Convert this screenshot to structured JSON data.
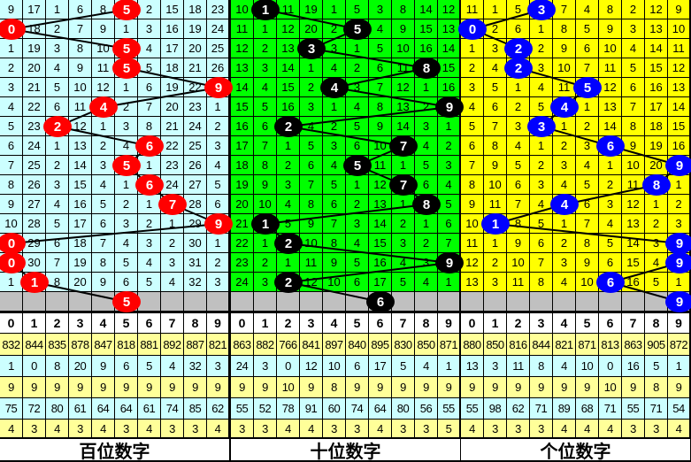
{
  "colors": {
    "hundreds_bg": "#ccffff",
    "tens_bg": "#00ff00",
    "units_bg": "#ffff00",
    "hundreds_ball": "#ff0000",
    "tens_ball": "#000000",
    "units_ball": "#0000ff",
    "pending_row": "#c0c0c0",
    "stat_yellow": "#ffff99",
    "stat_cyan": "#ccffff"
  },
  "digits": [
    "0",
    "1",
    "2",
    "3",
    "4",
    "5",
    "6",
    "7",
    "8",
    "9"
  ],
  "panels": [
    {
      "label": "百位数字",
      "hits": [
        5,
        0,
        5,
        5,
        9,
        4,
        2,
        6,
        5,
        6,
        7,
        9,
        0,
        0,
        1,
        5
      ],
      "rows": [
        [
          "9",
          "17",
          "1",
          "6",
          "8",
          "5",
          "2",
          "15",
          "18",
          "23"
        ],
        [
          "0",
          "18",
          "2",
          "7",
          "9",
          "1",
          "3",
          "16",
          "19",
          "24"
        ],
        [
          "1",
          "19",
          "3",
          "8",
          "10",
          "5",
          "4",
          "17",
          "20",
          "25"
        ],
        [
          "2",
          "20",
          "4",
          "9",
          "11",
          "5",
          "5",
          "18",
          "21",
          "26"
        ],
        [
          "3",
          "21",
          "5",
          "10",
          "12",
          "1",
          "6",
          "19",
          "22",
          "9"
        ],
        [
          "4",
          "22",
          "6",
          "11",
          "4",
          "2",
          "7",
          "20",
          "23",
          "1"
        ],
        [
          "5",
          "23",
          "2",
          "12",
          "1",
          "3",
          "8",
          "21",
          "24",
          "2"
        ],
        [
          "6",
          "24",
          "1",
          "13",
          "2",
          "4",
          "6",
          "22",
          "25",
          "3"
        ],
        [
          "7",
          "25",
          "2",
          "14",
          "3",
          "5",
          "1",
          "23",
          "26",
          "4"
        ],
        [
          "8",
          "26",
          "3",
          "15",
          "4",
          "1",
          "6",
          "24",
          "27",
          "5"
        ],
        [
          "9",
          "27",
          "4",
          "16",
          "5",
          "2",
          "1",
          "7",
          "28",
          "6"
        ],
        [
          "10",
          "28",
          "5",
          "17",
          "6",
          "3",
          "2",
          "1",
          "29",
          "9"
        ],
        [
          "0",
          "29",
          "6",
          "18",
          "7",
          "4",
          "3",
          "2",
          "30",
          "1"
        ],
        [
          "0",
          "30",
          "7",
          "19",
          "8",
          "5",
          "4",
          "3",
          "31",
          "2"
        ],
        [
          "1",
          "1",
          "8",
          "20",
          "9",
          "6",
          "5",
          "4",
          "32",
          "3"
        ],
        [
          "",
          "",
          "",
          "",
          "",
          "5",
          "",
          "",
          "",
          ""
        ]
      ],
      "stats": [
        [
          "832",
          "844",
          "835",
          "878",
          "847",
          "818",
          "881",
          "892",
          "887",
          "821"
        ],
        [
          "1",
          "0",
          "8",
          "20",
          "9",
          "6",
          "5",
          "4",
          "32",
          "3"
        ],
        [
          "9",
          "9",
          "9",
          "9",
          "9",
          "9",
          "9",
          "9",
          "9",
          "9"
        ],
        [
          "75",
          "72",
          "80",
          "61",
          "64",
          "64",
          "61",
          "74",
          "85",
          "62"
        ],
        [
          "4",
          "3",
          "4",
          "3",
          "4",
          "3",
          "4",
          "3",
          "3",
          "4"
        ]
      ]
    },
    {
      "label": "十位数字",
      "hits": [
        1,
        5,
        3,
        8,
        4,
        9,
        2,
        7,
        5,
        7,
        8,
        1,
        2,
        9,
        2,
        6
      ],
      "rows": [
        [
          "10",
          "1",
          "11",
          "19",
          "1",
          "5",
          "3",
          "8",
          "14",
          "12"
        ],
        [
          "11",
          "1",
          "12",
          "20",
          "2",
          "5",
          "4",
          "9",
          "15",
          "13"
        ],
        [
          "12",
          "2",
          "13",
          "3",
          "3",
          "1",
          "5",
          "10",
          "16",
          "14"
        ],
        [
          "13",
          "3",
          "14",
          "1",
          "4",
          "2",
          "6",
          "11",
          "8",
          "15"
        ],
        [
          "14",
          "4",
          "15",
          "2",
          "4",
          "3",
          "7",
          "12",
          "1",
          "16"
        ],
        [
          "15",
          "5",
          "16",
          "3",
          "1",
          "4",
          "8",
          "13",
          "2",
          "9"
        ],
        [
          "16",
          "6",
          "2",
          "4",
          "2",
          "5",
          "9",
          "14",
          "3",
          "1"
        ],
        [
          "17",
          "7",
          "1",
          "5",
          "3",
          "6",
          "10",
          "7",
          "4",
          "2"
        ],
        [
          "18",
          "8",
          "2",
          "6",
          "4",
          "5",
          "11",
          "1",
          "5",
          "3"
        ],
        [
          "19",
          "9",
          "3",
          "7",
          "5",
          "1",
          "12",
          "7",
          "6",
          "4"
        ],
        [
          "20",
          "10",
          "4",
          "8",
          "6",
          "2",
          "13",
          "1",
          "8",
          "5"
        ],
        [
          "21",
          "1",
          "5",
          "9",
          "7",
          "3",
          "14",
          "2",
          "1",
          "6"
        ],
        [
          "22",
          "1",
          "2",
          "10",
          "8",
          "4",
          "15",
          "3",
          "2",
          "7"
        ],
        [
          "23",
          "2",
          "1",
          "11",
          "9",
          "5",
          "16",
          "4",
          "3",
          "9"
        ],
        [
          "24",
          "3",
          "2",
          "12",
          "10",
          "6",
          "17",
          "5",
          "4",
          "1"
        ],
        [
          "",
          "",
          "",
          "",
          "",
          "",
          "6",
          "",
          "",
          ""
        ]
      ],
      "stats": [
        [
          "863",
          "882",
          "766",
          "841",
          "897",
          "840",
          "895",
          "830",
          "850",
          "871"
        ],
        [
          "24",
          "3",
          "0",
          "12",
          "10",
          "6",
          "17",
          "5",
          "4",
          "1"
        ],
        [
          "9",
          "9",
          "10",
          "9",
          "8",
          "9",
          "9",
          "9",
          "9",
          "9"
        ],
        [
          "55",
          "52",
          "78",
          "91",
          "60",
          "74",
          "64",
          "80",
          "56",
          "55"
        ],
        [
          "3",
          "3",
          "4",
          "4",
          "3",
          "3",
          "4",
          "3",
          "3",
          "5"
        ]
      ]
    },
    {
      "label": "个位数字",
      "hits": [
        3,
        0,
        2,
        2,
        5,
        4,
        3,
        6,
        9,
        8,
        4,
        1,
        9,
        9,
        6,
        9
      ],
      "rows": [
        [
          "11",
          "1",
          "5",
          "3",
          "7",
          "4",
          "8",
          "2",
          "12",
          "9"
        ],
        [
          "0",
          "2",
          "6",
          "1",
          "8",
          "5",
          "9",
          "3",
          "13",
          "10"
        ],
        [
          "1",
          "3",
          "2",
          "2",
          "9",
          "6",
          "10",
          "4",
          "14",
          "11"
        ],
        [
          "2",
          "4",
          "2",
          "3",
          "10",
          "7",
          "11",
          "5",
          "15",
          "12"
        ],
        [
          "3",
          "5",
          "1",
          "4",
          "11",
          "5",
          "12",
          "6",
          "16",
          "13"
        ],
        [
          "4",
          "6",
          "2",
          "5",
          "4",
          "1",
          "13",
          "7",
          "17",
          "14"
        ],
        [
          "5",
          "7",
          "3",
          "3",
          "1",
          "2",
          "14",
          "8",
          "18",
          "15"
        ],
        [
          "6",
          "8",
          "4",
          "1",
          "2",
          "3",
          "6",
          "9",
          "19",
          "16"
        ],
        [
          "7",
          "9",
          "5",
          "2",
          "3",
          "4",
          "1",
          "10",
          "20",
          "9"
        ],
        [
          "8",
          "10",
          "6",
          "3",
          "4",
          "5",
          "2",
          "11",
          "8",
          "1"
        ],
        [
          "9",
          "11",
          "7",
          "4",
          "4",
          "6",
          "3",
          "12",
          "1",
          "2"
        ],
        [
          "10",
          "1",
          "8",
          "5",
          "1",
          "7",
          "4",
          "13",
          "2",
          "3"
        ],
        [
          "11",
          "1",
          "9",
          "6",
          "2",
          "8",
          "5",
          "14",
          "3",
          "9"
        ],
        [
          "12",
          "2",
          "10",
          "7",
          "3",
          "9",
          "6",
          "15",
          "4",
          "9"
        ],
        [
          "13",
          "3",
          "11",
          "8",
          "4",
          "10",
          "6",
          "16",
          "5",
          "1"
        ],
        [
          "",
          "",
          "",
          "",
          "",
          "",
          "",
          "",
          "",
          "9"
        ]
      ],
      "stats": [
        [
          "880",
          "850",
          "816",
          "844",
          "821",
          "871",
          "813",
          "863",
          "905",
          "872"
        ],
        [
          "13",
          "3",
          "11",
          "8",
          "4",
          "10",
          "0",
          "16",
          "5",
          "1"
        ],
        [
          "9",
          "9",
          "9",
          "9",
          "9",
          "9",
          "10",
          "9",
          "8",
          "9"
        ],
        [
          "55",
          "98",
          "62",
          "71",
          "89",
          "68",
          "71",
          "55",
          "71",
          "54"
        ],
        [
          "4",
          "3",
          "3",
          "3",
          "4",
          "4",
          "4",
          "3",
          "3",
          "4"
        ]
      ]
    }
  ]
}
